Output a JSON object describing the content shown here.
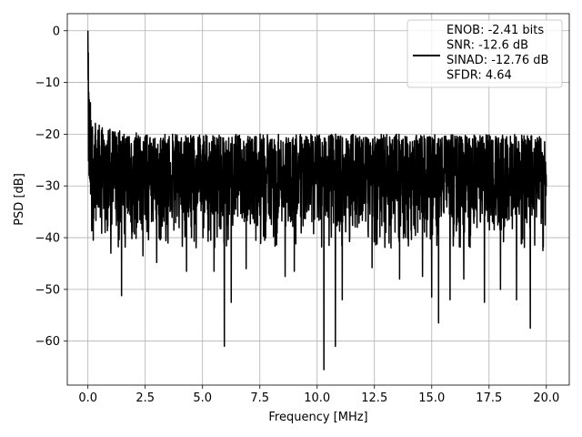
{
  "chart_data": {
    "type": "line",
    "xlabel": "Frequency [MHz]",
    "ylabel": "PSD [dB]",
    "xlim": [
      -0.9,
      21.0
    ],
    "ylim": [
      -68.5,
      3.3
    ],
    "xticks": [
      0.0,
      2.5,
      5.0,
      7.5,
      10.0,
      12.5,
      15.0,
      17.5,
      20.0
    ],
    "xtick_labels": [
      "0.0",
      "2.5",
      "5.0",
      "7.5",
      "10.0",
      "12.5",
      "15.0",
      "17.5",
      "20.0"
    ],
    "yticks": [
      0,
      -10,
      -20,
      -30,
      -40,
      -50,
      -60
    ],
    "ytick_labels": [
      "0",
      "−10",
      "−20",
      "−30",
      "−40",
      "−50",
      "−60"
    ],
    "grid": true,
    "legend": {
      "placement": "top-right",
      "entries": [
        "ENOB: -2.41 bits",
        "SNR: -12.6 dB",
        "SINAD: -12.76 dB",
        "SFDR: 4.64"
      ]
    },
    "series": [
      {
        "color": "#000000",
        "x": [
          0.0,
          0.02,
          0.04,
          0.07,
          0.1,
          0.15,
          0.2,
          0.3,
          0.4,
          0.5,
          0.7,
          1.0,
          1.5,
          2.0,
          3.0,
          4.0,
          5.0,
          6.0,
          7.0,
          8.0,
          9.0,
          10.0,
          11.0,
          12.0,
          13.0,
          14.0,
          15.0,
          16.0,
          17.0,
          18.0,
          19.0,
          20.0
        ],
        "peak": [
          0,
          -5,
          -10,
          -11,
          -13,
          -15,
          -16,
          -17,
          -18,
          -18,
          -19,
          -19,
          -19,
          -19.5,
          -20,
          -20,
          -20,
          -20,
          -20,
          -20,
          -20,
          -20,
          -20,
          -20,
          -20,
          -20,
          -20,
          -20,
          -20,
          -20,
          -20,
          -20
        ],
        "trough": [
          -26,
          -30,
          -35,
          -38,
          -40,
          -38,
          -37,
          -37,
          -37,
          -37,
          -38,
          -38,
          -38,
          -38,
          -38,
          -38,
          -38,
          -38,
          -38,
          -38,
          -38,
          -38,
          -38,
          -38,
          -38,
          -38,
          -38,
          -38,
          -38,
          -38,
          -38,
          -38
        ],
        "dips": [
          [
            0.23,
            -40.5
          ],
          [
            1.0,
            -43.0
          ],
          [
            1.47,
            -51.2
          ],
          [
            2.4,
            -43.5
          ],
          [
            3.0,
            -44.8
          ],
          [
            4.3,
            -46.5
          ],
          [
            5.5,
            -46.5
          ],
          [
            5.95,
            -61.0
          ],
          [
            6.25,
            -52.5
          ],
          [
            6.9,
            -46.0
          ],
          [
            8.6,
            -47.5
          ],
          [
            9.0,
            -46.5
          ],
          [
            10.3,
            -65.5
          ],
          [
            10.8,
            -61.0
          ],
          [
            11.1,
            -52.0
          ],
          [
            12.4,
            -45.8
          ],
          [
            13.6,
            -48.0
          ],
          [
            14.6,
            -47.5
          ],
          [
            15.0,
            -51.5
          ],
          [
            15.3,
            -56.5
          ],
          [
            15.8,
            -52.0
          ],
          [
            16.4,
            -48.0
          ],
          [
            17.3,
            -52.5
          ],
          [
            18.0,
            -50.0
          ],
          [
            18.7,
            -52.0
          ],
          [
            19.3,
            -57.5
          ],
          [
            19.85,
            -42.5
          ]
        ]
      }
    ]
  }
}
